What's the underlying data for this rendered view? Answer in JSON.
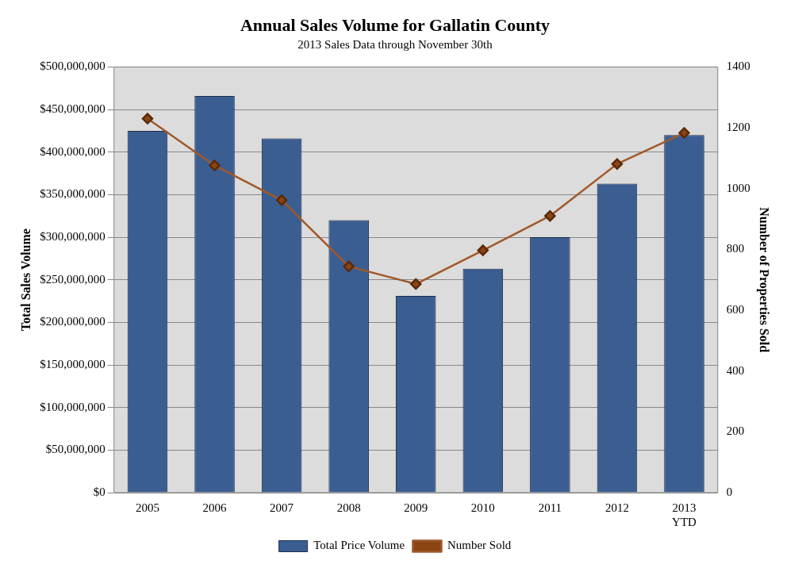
{
  "chart_data": {
    "type": "bar",
    "title": "Annual Sales Volume for Gallatin County",
    "subtitle": "2013 Sales Data through November 30th",
    "ylabel": "Total Sales Volume",
    "y2label": "Number of Properties Sold",
    "categories": [
      "2005",
      "2006",
      "2007",
      "2008",
      "2009",
      "2010",
      "2011",
      "2012",
      "2013\nYTD"
    ],
    "series": [
      {
        "name": "Total Price Volume",
        "color": "#3b5e92",
        "values": [
          425000000,
          466000000,
          416000000,
          320000000,
          231000000,
          263000000,
          300000000,
          363000000,
          420000000
        ]
      },
      {
        "name": "Number Sold",
        "type": "line",
        "axis": "y2",
        "color": "#a0582a",
        "marker": "diamond",
        "values": [
          1230,
          1076,
          962,
          744,
          686,
          797,
          910,
          1081,
          1183
        ]
      }
    ],
    "ylim": [
      0,
      500000000
    ],
    "yticks": [
      {
        "value": 0,
        "label": "$0"
      },
      {
        "value": 50000000,
        "label": "$50,000,000"
      },
      {
        "value": 100000000,
        "label": "$100,000,000"
      },
      {
        "value": 150000000,
        "label": "$150,000,000"
      },
      {
        "value": 200000000,
        "label": "$200,000,000"
      },
      {
        "value": 250000000,
        "label": "$250,000,000"
      },
      {
        "value": 300000000,
        "label": "$300,000,000"
      },
      {
        "value": 350000000,
        "label": "$350,000,000"
      },
      {
        "value": 400000000,
        "label": "$400,000,000"
      },
      {
        "value": 450000000,
        "label": "$450,000,000"
      },
      {
        "value": 500000000,
        "label": "$500,000,000"
      }
    ],
    "y2lim": [
      0,
      1400
    ],
    "y2ticks": [
      0,
      200,
      400,
      600,
      800,
      1000,
      1200,
      1400
    ],
    "grid": "y",
    "legend": "bottom"
  }
}
